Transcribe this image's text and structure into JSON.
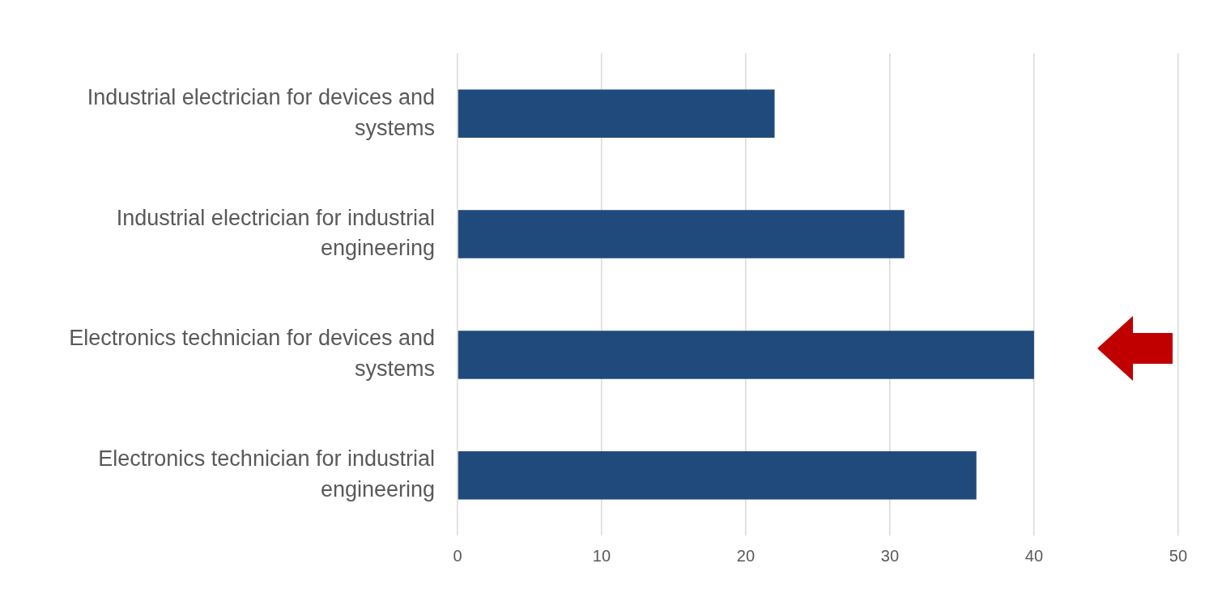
{
  "chart_data": {
    "type": "bar",
    "orientation": "horizontal",
    "categories": [
      "Industrial electrician for devices and systems",
      "Industrial electrician for industrial engineering",
      "Electronics technician for devices and systems",
      "Electronics technician for industrial engineering"
    ],
    "values": [
      22,
      31,
      40,
      36
    ],
    "color": "#204a7c",
    "xlim": [
      0,
      50
    ],
    "xticks": [
      0,
      10,
      20,
      30,
      40,
      50
    ],
    "grid": "x",
    "legend": false
  }
}
